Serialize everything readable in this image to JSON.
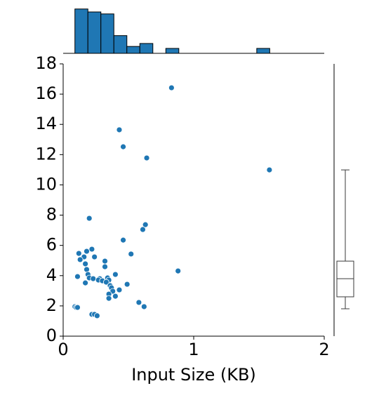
{
  "chart_data": [
    {
      "type": "scatter",
      "xlabel": "Input Size (KB)",
      "color": "#1f77b4",
      "x": [
        0.83,
        0.43,
        0.46,
        0.64,
        1.58,
        0.2,
        0.63,
        0.61,
        0.46,
        0.22,
        0.18,
        0.52,
        0.12,
        0.16,
        0.24,
        0.13,
        0.32,
        0.17,
        0.32,
        0.18,
        0.88,
        0.4,
        0.11,
        0.19,
        0.2,
        0.23,
        0.28,
        0.34,
        0.35,
        0.27,
        0.3,
        0.33,
        0.17,
        0.36,
        0.49,
        0.37,
        0.43,
        0.38,
        0.35,
        0.4,
        0.35,
        0.58,
        0.62,
        0.09,
        0.1,
        0.11,
        0.22,
        0.24,
        0.26
      ],
      "y": [
        16.42,
        13.64,
        12.52,
        11.78,
        10.99,
        7.79,
        7.37,
        7.05,
        6.35,
        5.75,
        5.61,
        5.43,
        5.47,
        5.24,
        5.24,
        5.06,
        4.96,
        4.78,
        4.59,
        4.41,
        4.31,
        4.08,
        3.94,
        4.08,
        3.85,
        3.8,
        3.8,
        3.85,
        3.71,
        3.71,
        3.66,
        3.57,
        3.52,
        3.34,
        3.43,
        3.2,
        3.06,
        2.97,
        2.78,
        2.64,
        2.5,
        2.23,
        1.95,
        1.95,
        1.9,
        1.9,
        1.44,
        1.44,
        1.35
      ],
      "xlim": [
        0,
        2
      ],
      "xticks": [
        0,
        1,
        2
      ],
      "ylim": [
        0,
        18
      ],
      "yticks": [
        0,
        2,
        4,
        6,
        8,
        10,
        12,
        14,
        16,
        18
      ]
    },
    {
      "type": "histogram",
      "color": "#1f77b4",
      "bins": [
        0.09,
        0.1895,
        0.289,
        0.3885,
        0.488,
        0.5875,
        0.687,
        0.7865,
        0.886,
        0.9855,
        1.085,
        1.1845,
        1.284,
        1.3835,
        1.483,
        1.5825
      ],
      "counts": [
        9,
        8.4,
        8,
        3.6,
        1.4,
        2,
        0,
        1,
        0,
        0,
        0,
        0,
        0,
        0,
        1
      ],
      "xlim": [
        0,
        2
      ],
      "ylim": [
        0,
        9.4
      ]
    },
    {
      "type": "box",
      "min": 1.81,
      "q1": 2.6,
      "median": 3.8,
      "q3": 4.96,
      "max": 10.99,
      "ylim": [
        0,
        18
      ]
    }
  ]
}
